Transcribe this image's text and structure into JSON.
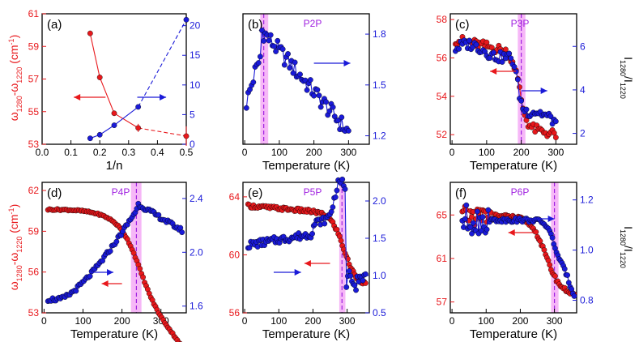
{
  "colors": {
    "red": "#e8181c",
    "blue": "#1a1ad8",
    "purple": "#a020e0",
    "band": "#ee7cf0"
  },
  "chart_data": [
    {
      "type": "scatter",
      "id": "a",
      "panel_label": "(a)",
      "xlabel": "1/n",
      "ylabel_left": "ω1280-ω1220 (cm-1)",
      "xlim": [
        0,
        0.5
      ],
      "ylim_left": [
        53,
        61
      ],
      "ylim_right": [
        0,
        22
      ],
      "xticks": [
        "0.0",
        "0.1",
        "0.2",
        "0.3",
        "0.4",
        "0.5"
      ],
      "yticks_left": [
        "53",
        "55",
        "57",
        "59",
        "61"
      ],
      "yticks_right": [
        "0",
        "5",
        "10",
        "15",
        "20"
      ],
      "series": [
        {
          "axis": "left",
          "color": "red",
          "x": [
            0.1667,
            0.2,
            0.25,
            0.3333,
            0.5
          ],
          "y": [
            59.8,
            57.1,
            54.9,
            54.0,
            53.5
          ],
          "solid_until": 0.3333
        },
        {
          "axis": "right",
          "color": "blue",
          "x": [
            0.1667,
            0.2,
            0.25,
            0.3333,
            0.5
          ],
          "y": [
            1.0,
            1.6,
            3.2,
            6.3,
            21.0
          ],
          "solid_until": 0.3333
        }
      ]
    },
    {
      "type": "scatter",
      "id": "b",
      "panel_label": "(b)",
      "title": "P2P",
      "xlabel": "Temperature (K)",
      "xlim": [
        -5,
        360
      ],
      "ylim_right": [
        1.15,
        1.92
      ],
      "xticks": [
        "0",
        "100",
        "200",
        "300"
      ],
      "yticks_right": [
        "1.2",
        "1.5",
        "1.8"
      ],
      "transition_K": 55,
      "band_K": [
        45,
        68
      ]
    },
    {
      "type": "scatter",
      "id": "c",
      "panel_label": "(c)",
      "title": "P3P",
      "xlabel": "Temperature (K)",
      "ylabel_right": "I1280/I1220",
      "xlim": [
        -5,
        360
      ],
      "ylim_left": [
        51.5,
        58.3
      ],
      "ylim_right": [
        1.5,
        7.5
      ],
      "xticks": [
        "0",
        "100",
        "200",
        "300"
      ],
      "yticks_left": [
        "52",
        "54",
        "56",
        "58"
      ],
      "yticks_right": [
        "2",
        "4",
        "6"
      ],
      "transition_K": 200,
      "band_K": [
        190,
        212
      ]
    },
    {
      "type": "scatter",
      "id": "d",
      "panel_label": "(d)",
      "title": "P4P",
      "xlabel": "Temperature (K)",
      "ylabel_left": "ω1280-ω1220 (cm-1)",
      "xlim": [
        -5,
        365
      ],
      "ylim_left": [
        53,
        62.6
      ],
      "ylim_right": [
        1.55,
        2.52
      ],
      "xticks": [
        "0",
        "100",
        "200",
        "300"
      ],
      "yticks_left": [
        "53",
        "56",
        "59",
        "62"
      ],
      "yticks_right": [
        "1.6",
        "2.0",
        "2.4"
      ],
      "transition_K": 237,
      "band_K": [
        223,
        250
      ]
    },
    {
      "type": "scatter",
      "id": "e",
      "panel_label": "(e)",
      "title": "P5P",
      "xlabel": "Temperature (K)",
      "xlim": [
        -5,
        365
      ],
      "ylim_left": [
        56,
        65
      ],
      "ylim_right": [
        0.5,
        2.25
      ],
      "xticks": [
        "0",
        "100",
        "200",
        "300"
      ],
      "yticks_left": [
        "56",
        "60",
        "64"
      ],
      "yticks_right": [
        "0.5",
        "1.0",
        "1.5",
        "2.0"
      ],
      "transition_K": 285,
      "band_K": [
        277,
        295
      ]
    },
    {
      "type": "scatter",
      "id": "f",
      "panel_label": "(f)",
      "title": "P6P",
      "xlabel": "Temperature (K)",
      "ylabel_right": "I1280/I1220",
      "xlim": [
        -5,
        365
      ],
      "ylim_left": [
        56,
        68
      ],
      "ylim_right": [
        0.75,
        1.27
      ],
      "xticks": [
        "0",
        "100",
        "200",
        "300"
      ],
      "yticks_left": [
        "57",
        "61",
        "65"
      ],
      "yticks_right": [
        "0.8",
        "1.0",
        "1.2"
      ],
      "transition_K": 300,
      "band_K": [
        290,
        312
      ]
    }
  ]
}
